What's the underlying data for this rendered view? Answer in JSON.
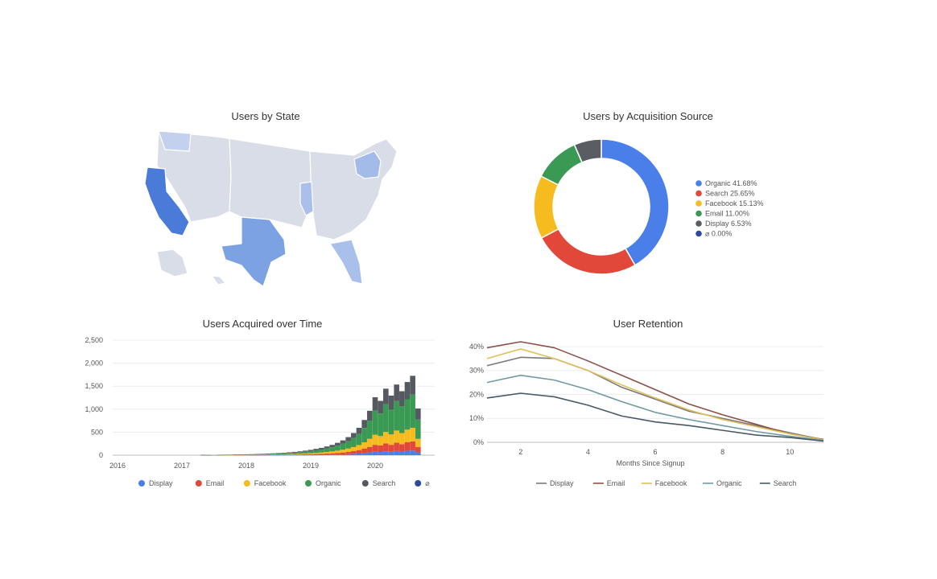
{
  "titles": {
    "map": "Users by State",
    "donut": "Users by Acquisition Source",
    "stack": "Users Acquired over Time",
    "retention": "User Retention"
  },
  "chart_data": [
    {
      "type": "heatmap",
      "title": "Users by State",
      "values": [
        {
          "state": "California",
          "level": "high",
          "color": "#4a7bd8"
        },
        {
          "state": "Texas",
          "level": "medium",
          "color": "#7ca2e3"
        },
        {
          "state": "Florida",
          "level": "medium-low",
          "color": "#a9c0ea"
        },
        {
          "state": "New York",
          "level": "medium-low",
          "color": "#a3bbe9"
        },
        {
          "state": "Illinois",
          "level": "medium-low",
          "color": "#a9c0ea"
        },
        {
          "state": "Washington",
          "level": "low",
          "color": "#c3d1ee"
        },
        {
          "state": "Other",
          "level": "lowest",
          "color": "#d8dde8"
        }
      ]
    },
    {
      "type": "pie",
      "title": "Users by Acquisition Source",
      "donut": true,
      "legend_position": "right",
      "slices": [
        {
          "label": "Organic 41.68%",
          "name": "Organic",
          "value": 41.68,
          "color": "#4a7ee8"
        },
        {
          "label": "Search 25.65%",
          "name": "Search",
          "value": 25.65,
          "color": "#e2483a"
        },
        {
          "label": "Facebook 15.13%",
          "name": "Facebook",
          "value": 15.13,
          "color": "#f6bb1e"
        },
        {
          "label": "Email 11.00%",
          "name": "Email",
          "value": 11.0,
          "color": "#3a9a53"
        },
        {
          "label": "Display 6.53%",
          "name": "Display",
          "value": 6.53,
          "color": "#5a5d62"
        },
        {
          "label": "⌀ 0.00%",
          "name": "⌀",
          "value": 0.0,
          "color": "#2d4a9c"
        }
      ]
    },
    {
      "type": "bar",
      "stacked": true,
      "title": "Users Acquired over Time",
      "ylim": [
        0,
        2500
      ],
      "yticks": [
        "2,500",
        "2,000",
        "1,500",
        "1,000",
        "500",
        "0"
      ],
      "ytick_values": [
        2500,
        2000,
        1500,
        1000,
        500,
        0
      ],
      "xticks": [
        "2016",
        "2017",
        "2018",
        "2019",
        "2020"
      ],
      "legend_position": "bottom",
      "categories": [
        "2017-05",
        "2017-06",
        "2017-07",
        "2017-08",
        "2017-09",
        "2017-10",
        "2017-11",
        "2017-12",
        "2018-01",
        "2018-02",
        "2018-03",
        "2018-04",
        "2018-05",
        "2018-06",
        "2018-07",
        "2018-08",
        "2018-09",
        "2018-10",
        "2018-11",
        "2018-12",
        "2019-01",
        "2019-02",
        "2019-03",
        "2019-04",
        "2019-05",
        "2019-06",
        "2019-07",
        "2019-08",
        "2019-09",
        "2019-10",
        "2019-11",
        "2019-12",
        "2020-01",
        "2020-02",
        "2020-03",
        "2020-04",
        "2020-05",
        "2020-06",
        "2020-07",
        "2020-08",
        "2020-09"
      ],
      "series": [
        {
          "name": "Display",
          "color": "#4a7ee8",
          "values": [
            0,
            0,
            0,
            0,
            0,
            0,
            0,
            0,
            0,
            1,
            1,
            1,
            1,
            2,
            2,
            2,
            3,
            3,
            4,
            5,
            6,
            7,
            8,
            10,
            12,
            15,
            18,
            22,
            28,
            35,
            45,
            60,
            75,
            70,
            85,
            75,
            90,
            80,
            95,
            100,
            60
          ]
        },
        {
          "name": "Email",
          "color": "#e2483a",
          "values": [
            1,
            0,
            0,
            1,
            1,
            1,
            2,
            2,
            3,
            3,
            3,
            4,
            4,
            5,
            6,
            7,
            8,
            9,
            11,
            13,
            15,
            18,
            20,
            24,
            28,
            34,
            40,
            50,
            60,
            75,
            95,
            120,
            150,
            140,
            170,
            150,
            180,
            160,
            185,
            200,
            120
          ]
        },
        {
          "name": "Facebook",
          "color": "#f6bb1e",
          "values": [
            1,
            1,
            0,
            1,
            2,
            2,
            3,
            3,
            4,
            4,
            5,
            6,
            7,
            8,
            9,
            10,
            12,
            14,
            16,
            19,
            22,
            26,
            30,
            36,
            42,
            50,
            60,
            72,
            88,
            110,
            140,
            175,
            220,
            205,
            250,
            225,
            265,
            240,
            275,
            295,
            175
          ]
        },
        {
          "name": "Organic",
          "color": "#3a9a53",
          "values": [
            2,
            1,
            1,
            2,
            3,
            4,
            5,
            6,
            8,
            9,
            10,
            12,
            14,
            16,
            18,
            21,
            25,
            29,
            33,
            39,
            46,
            55,
            64,
            76,
            90,
            108,
            130,
            158,
            195,
            240,
            310,
            390,
            520,
            490,
            600,
            540,
            640,
            580,
            660,
            720,
            420
          ]
        },
        {
          "name": "Search",
          "color": "#555960",
          "values": [
            1,
            1,
            0,
            1,
            2,
            2,
            3,
            3,
            4,
            5,
            6,
            7,
            8,
            9,
            10,
            12,
            14,
            16,
            19,
            22,
            26,
            31,
            36,
            43,
            51,
            61,
            73,
            90,
            110,
            135,
            175,
            220,
            295,
            275,
            340,
            305,
            360,
            330,
            375,
            410,
            240
          ]
        },
        {
          "name": "⌀",
          "color": "#2d4a9c",
          "values": [
            0,
            0,
            0,
            0,
            0,
            0,
            0,
            0,
            0,
            0,
            0,
            0,
            0,
            0,
            0,
            0,
            0,
            0,
            0,
            0,
            0,
            0,
            0,
            0,
            0,
            0,
            0,
            0,
            0,
            0,
            0,
            0,
            0,
            0,
            0,
            0,
            0,
            0,
            0,
            0,
            0
          ]
        }
      ]
    },
    {
      "type": "line",
      "title": "User Retention",
      "xlabel": "Months Since Signup",
      "ylim": [
        0,
        42
      ],
      "yticks": [
        "40%",
        "30%",
        "20%",
        "10%",
        "0%"
      ],
      "ytick_values": [
        40,
        30,
        20,
        10,
        0
      ],
      "xticks": [
        "2",
        "4",
        "6",
        "8",
        "10"
      ],
      "xtick_values": [
        2,
        4,
        6,
        8,
        10
      ],
      "xlim": [
        1,
        11
      ],
      "legend_position": "bottom",
      "x": [
        1,
        2,
        3,
        4,
        5,
        6,
        7,
        8,
        9,
        10,
        11
      ],
      "series": [
        {
          "name": "Display",
          "color": "#7a7a7a",
          "values": [
            32,
            35.5,
            35,
            30,
            23,
            18,
            13,
            10,
            7,
            4,
            1
          ]
        },
        {
          "name": "Email",
          "color": "#8b5149",
          "values": [
            39.5,
            42,
            39.5,
            34,
            28,
            22,
            16,
            11.5,
            7.5,
            3.5,
            1.2
          ]
        },
        {
          "name": "Facebook",
          "color": "#e0c05a",
          "values": [
            35,
            39,
            35,
            30,
            24,
            18.5,
            13.5,
            9.5,
            6.5,
            3.5,
            1
          ]
        },
        {
          "name": "Organic",
          "color": "#6f9aa1",
          "values": [
            25,
            28,
            26,
            22,
            17,
            12.5,
            9.5,
            7,
            4.5,
            2.5,
            0.8
          ]
        },
        {
          "name": "Search",
          "color": "#4a5966",
          "values": [
            18.5,
            20.5,
            19,
            15.5,
            11,
            8.5,
            7,
            5,
            3,
            2,
            0.5
          ]
        }
      ]
    }
  ]
}
